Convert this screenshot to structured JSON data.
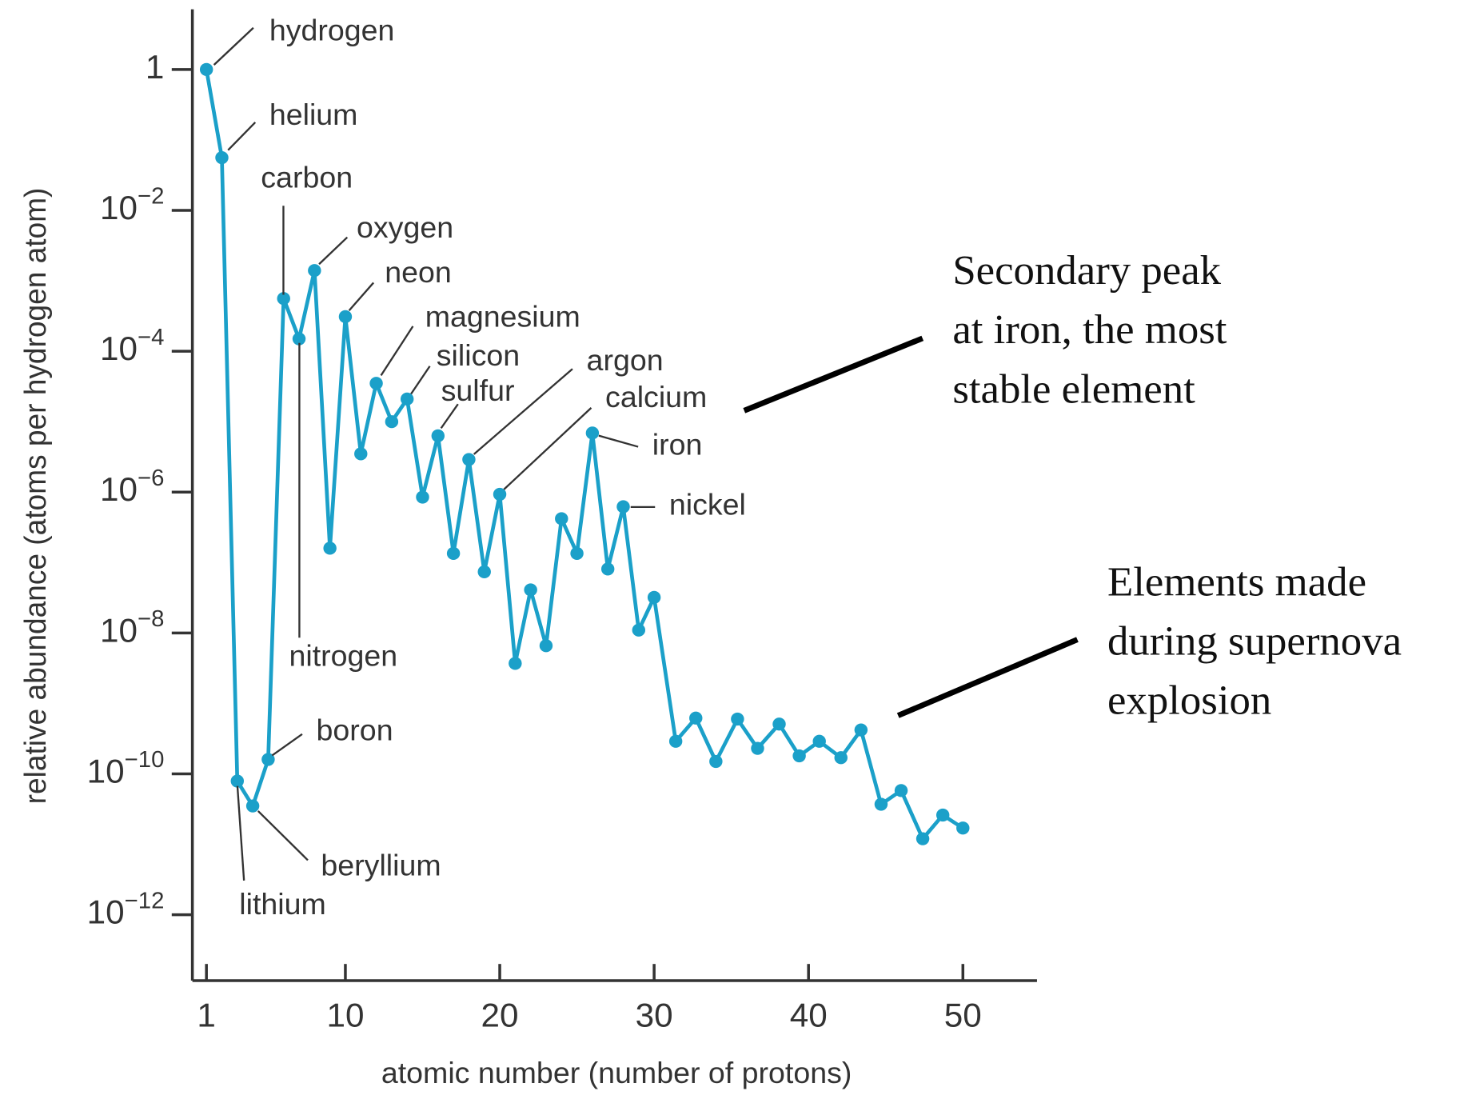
{
  "chart_data": {
    "type": "line",
    "xlabel": "atomic number (number of protons)",
    "ylabel": "relative abundance (atoms per hydrogen atom)",
    "log_y": true,
    "color": "#1ba0c9",
    "x": [
      1,
      2,
      3,
      4,
      5,
      6,
      7,
      8,
      9,
      10,
      11,
      12,
      13,
      14,
      15,
      16,
      17,
      18,
      19,
      20,
      21,
      22,
      23,
      24,
      25,
      26,
      27,
      28,
      29,
      30,
      31.4,
      32.7,
      34.0,
      35.4,
      36.7,
      38.1,
      39.4,
      40.7,
      42.1,
      43.4,
      44.7,
      46.0,
      47.4,
      48.7,
      50
    ],
    "values": [
      1,
      0.056,
      7.9e-11,
      3.5e-11,
      1.6e-10,
      0.00056,
      0.00015,
      0.0014,
      1.6e-07,
      0.00031,
      3.5e-06,
      3.5e-05,
      1e-05,
      2.1e-05,
      8.5e-07,
      6.3e-06,
      1.35e-07,
      2.9e-06,
      7.4e-08,
      9.3e-07,
      3.7e-09,
      4.1e-08,
      6.6e-09,
      4.2e-07,
      1.35e-07,
      6.9e-06,
      8.1e-08,
      6.2e-07,
      1.1e-08,
      3.2e-08,
      2.9e-10,
      6.2e-10,
      1.5e-10,
      6e-10,
      2.3e-10,
      5.1e-10,
      1.8e-10,
      2.9e-10,
      1.7e-10,
      4.2e-10,
      3.7e-11,
      5.8e-11,
      1.2e-11,
      2.6e-11,
      1.7e-11
    ],
    "xlim": [
      0.09,
      54.8
    ],
    "xticks": [
      1,
      10,
      20,
      30,
      40,
      50
    ],
    "ylim": [
      7.16,
      1.16e-13
    ],
    "yticks": [
      1,
      {
        "value": 0.01,
        "label": "10−2"
      },
      {
        "value": 0.0001,
        "label": "10−4"
      },
      {
        "value": 1e-06,
        "label": "10−6"
      },
      {
        "value": 1e-08,
        "label": "10−8"
      },
      {
        "value": 1e-10,
        "label": "10−10"
      },
      {
        "value": 1e-12,
        "label": "10−12"
      }
    ],
    "annotations": [
      "hydrogen",
      "helium",
      "carbon",
      "oxygen",
      "neon",
      "magnesium",
      "silicon",
      "sulfur",
      "argon",
      "calcium",
      "iron",
      "nickel",
      "nitrogen",
      "boron",
      "beryllium",
      "lithium"
    ],
    "notes": [
      {
        "lines": [
          "Secondary peak",
          "at iron, the most",
          "stable element"
        ]
      },
      {
        "lines": [
          "Elements made",
          "during supernova",
          "explosion"
        ]
      }
    ]
  }
}
